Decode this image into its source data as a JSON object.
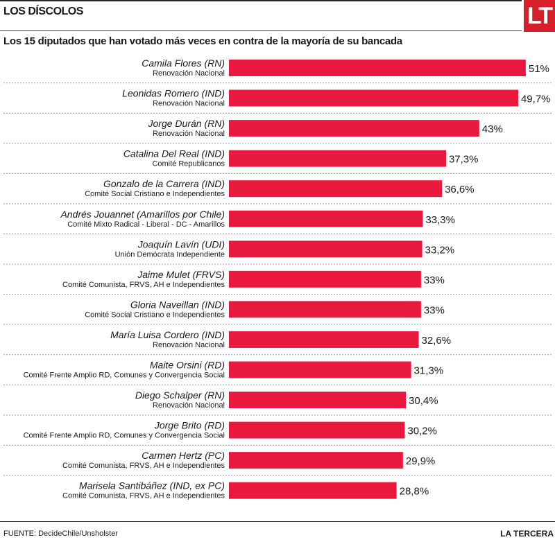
{
  "header": {
    "section_title": "LOS DÍSCOLOS",
    "logo_text": "LT",
    "brand_color": "#d61f2b"
  },
  "footer": {
    "source": "FUENTE: DecideChile/Unsholster",
    "brand": "LA TERCERA"
  },
  "chart_data": {
    "type": "bar",
    "orientation": "horizontal",
    "title": "Los 15 diputados que han votado más veces en contra de la mayoría de su bancada",
    "xlabel": "",
    "ylabel": "",
    "unit": "%",
    "xlim": [
      0,
      51
    ],
    "grid": false,
    "legend": "none",
    "bar_color": "#e8193c",
    "categories": [
      {
        "name": "Camila Flores (RN)",
        "bench": "Renovación Nacional"
      },
      {
        "name": "Leonidas Romero (IND)",
        "bench": "Renovación Nacional"
      },
      {
        "name": "Jorge Durán (RN)",
        "bench": "Renovación Nacional"
      },
      {
        "name": "Catalina Del Real  (IND)",
        "bench": "Comité Republicanos"
      },
      {
        "name": "Gonzalo de la Carrera (IND)",
        "bench": "Comité Social Cristiano e Independientes"
      },
      {
        "name": "Andrés Jouannet (Amarillos por Chile)",
        "bench": "Comité Mixto Radical - Liberal - DC - Amarillos"
      },
      {
        "name": "Joaquín Lavín  (UDI)",
        "bench": "Unión Demócrata Independiente"
      },
      {
        "name": "Jaime Mulet (FRVS)",
        "bench": "Comité Comunista, FRVS, AH e Independientes"
      },
      {
        "name": "Gloria Naveillan (IND)",
        "bench": "Comité Social Cristiano e Independientes"
      },
      {
        "name": "María Luisa Cordero (IND)",
        "bench": "Renovación Nacional"
      },
      {
        "name": "Maite Orsini  (RD)",
        "bench": "Comité Frente Amplio RD, Comunes y Convergencia Social"
      },
      {
        "name": "Diego Schalper (RN)",
        "bench": "Renovación Nacional"
      },
      {
        "name": "Jorge Brito  (RD)",
        "bench": "Comité Frente Amplio RD, Comunes y Convergencia Social"
      },
      {
        "name": "Carmen Hertz (PC)",
        "bench": "Comité Comunista, FRVS, AH e Independientes"
      },
      {
        "name": "Marisela Santibáñez  (IND, ex PC)",
        "bench": "Comité Comunista, FRVS, AH e Independientes"
      }
    ],
    "values": [
      51,
      49.7,
      43,
      37.3,
      36.6,
      33.3,
      33.2,
      33,
      33,
      32.6,
      31.3,
      30.4,
      30.2,
      29.9,
      28.8
    ],
    "value_labels": [
      "51%",
      "49,7%",
      "43%",
      "37,3%",
      "36,6%",
      "33,3%",
      "33,2%",
      "33%",
      "33%",
      "32,6%",
      "31,3%",
      "30,4%",
      "30,2%",
      "29,9%",
      "28,8%"
    ]
  }
}
